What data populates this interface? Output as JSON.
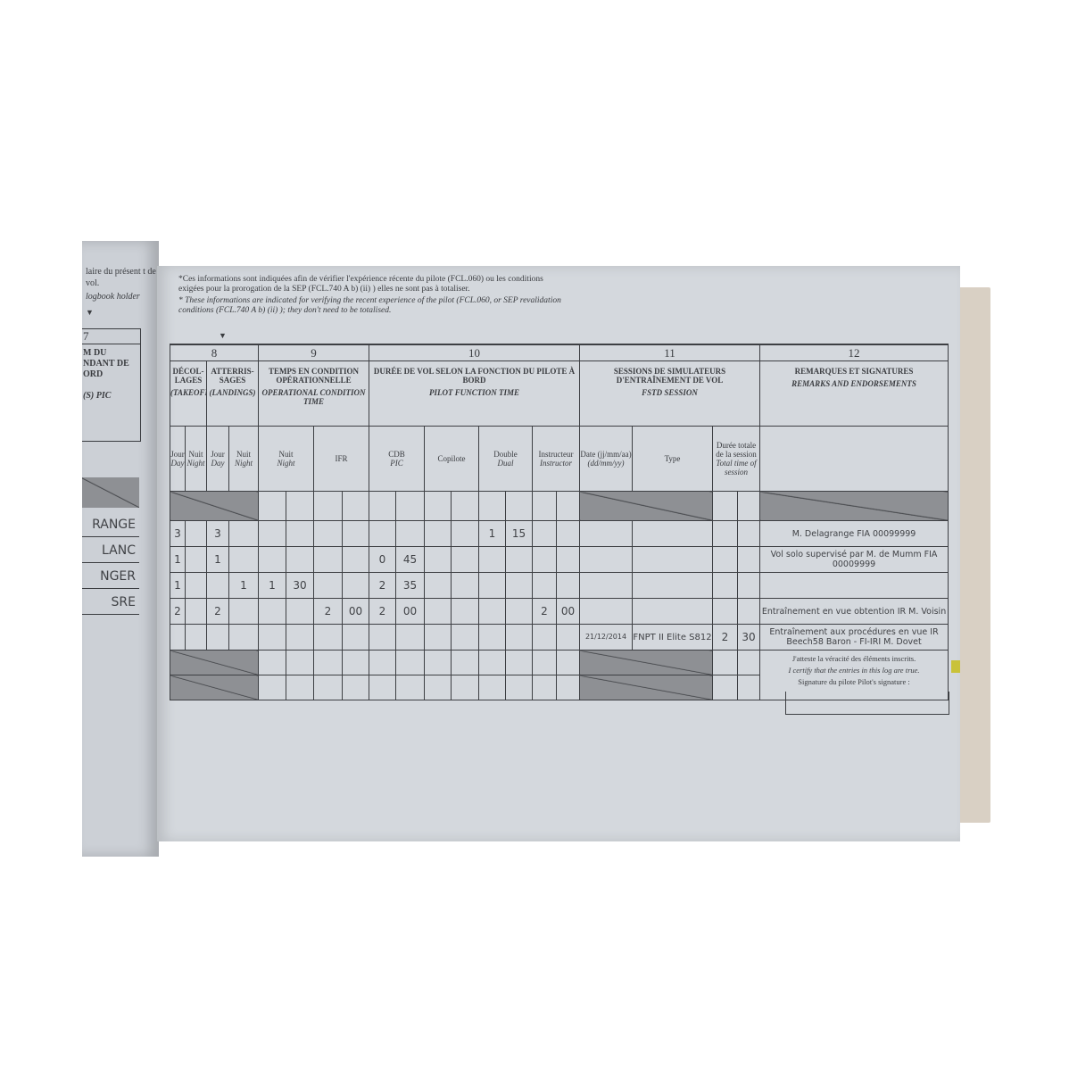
{
  "left_page": {
    "note_fr": "laire du présent t de vol.",
    "note_en": "logbook holder",
    "column_number": "7",
    "column_title": "M DU NDANT DE ORD",
    "column_title_en": "(S) PIC",
    "names": [
      "RANGE",
      "LANC",
      "NGER",
      "SRE"
    ]
  },
  "notes": {
    "fr": "*Ces informations sont indiquées afin de vérifier l'expérience récente du pilote (FCL.060) ou les conditions exigées pour la prorogation de la SEP (FCL.740 A b) (ii) ) elles ne sont pas à totaliser.",
    "en": "* These informations are indicated for verifying the recent experience of the pilot (FCL.060, or SEP revalidation conditions (FCL.740 A b) (ii) ); they don't need to be totalised."
  },
  "header": {
    "col8": {
      "number": "8",
      "takeoffs": "DÉCOL-LAGES",
      "takeoffs_en": "(TAKEOFFS)",
      "landings": "ATTERRIS-SAGES",
      "landings_en": "(LANDINGS)"
    },
    "col9": {
      "number": "9",
      "title": "TEMPS EN CONDITION OPÉRATIONNELLE",
      "title_en": "OPERATIONAL CONDITION TIME"
    },
    "col10": {
      "number": "10",
      "title": "DURÉE DE VOL SELON LA FONCTION DU PILOTE À BORD",
      "title_en": "PILOT FUNCTION TIME"
    },
    "col11": {
      "number": "11",
      "title": "SESSIONS DE SIMULATEURS D'ENTRAÎNEMENT DE VOL",
      "title_en": "FSTD SESSION"
    },
    "col12": {
      "number": "12",
      "title": "REMARQUES ET SIGNATURES",
      "title_en": "REMARKS AND ENDORSEMENTS"
    },
    "sub": {
      "jour": "Jour",
      "day": "Day",
      "nuit": "Nuit",
      "night": "Night",
      "ifr": "IFR",
      "cdb": "CDB",
      "pic": "PIC",
      "copilote": "Copilote",
      "double": "Double",
      "dual": "Dual",
      "instructeur": "Instructeur",
      "instructor": "Instructor",
      "date": "Date (jj/mm/aa)",
      "date_en": "(dd/mm/yy)",
      "type": "Type",
      "duree": "Durée totale de la session",
      "duree_en": "Total time of session"
    }
  },
  "rows": [
    {
      "cells": [
        "3",
        "",
        "3",
        "",
        "",
        "",
        "",
        "",
        "",
        "",
        "",
        "",
        "1",
        "15",
        "",
        "",
        "",
        "",
        "",
        ""
      ],
      "remark": "M. Delagrange FIA 00099999"
    },
    {
      "cells": [
        "1",
        "",
        "1",
        "",
        "",
        "",
        "",
        "",
        "0",
        "45",
        "",
        "",
        "",
        "",
        "",
        "",
        "",
        "",
        "",
        ""
      ],
      "remark": "Vol solo supervisé par M. de Mumm FIA 00009999"
    },
    {
      "cells": [
        "1",
        "",
        "",
        "1",
        "1",
        "30",
        "",
        "",
        "2",
        "35",
        "",
        "",
        "",
        "",
        "",
        "",
        "",
        "",
        "",
        ""
      ],
      "remark": ""
    },
    {
      "cells": [
        "2",
        "",
        "2",
        "",
        "",
        "",
        "2",
        "00",
        "2",
        "00",
        "",
        "",
        "",
        "",
        "2",
        "00",
        "",
        "",
        "",
        ""
      ],
      "remark": "Entraînement en vue obtention IR M. Voisin"
    },
    {
      "cells": [
        "",
        "",
        "",
        "",
        "",
        "",
        "",
        "",
        "",
        "",
        "",
        "",
        "",
        "",
        "",
        "",
        "21/12/2014",
        "FNPT II Elite S812",
        "2",
        "30"
      ],
      "remark": "Entraînement aux procédures en vue IR Beech58 Baron - FI-IRI M. Dovet"
    }
  ],
  "certify": {
    "fr": "J'atteste la véracité des éléments inscrits.",
    "en": "I certify that the entries in this log are true.",
    "signature": "Signature du pilote Pilot's signature :"
  }
}
